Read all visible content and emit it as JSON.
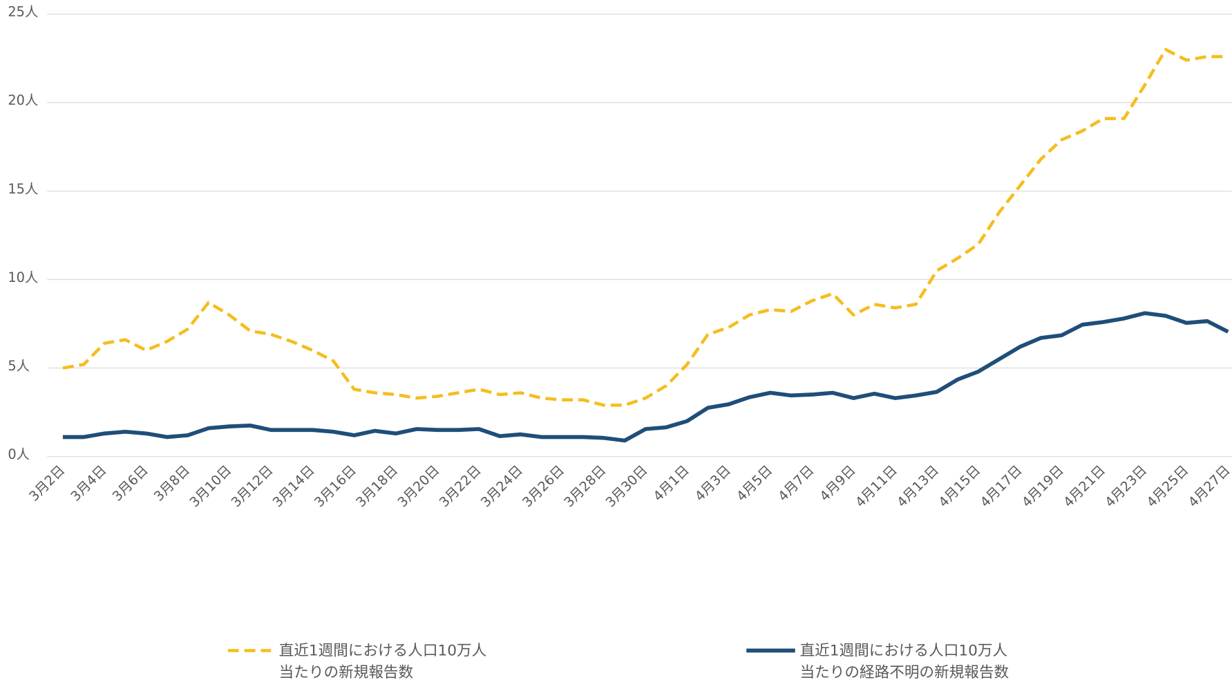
{
  "chart_data": {
    "type": "line",
    "categories": [
      "3月2日",
      null,
      "3月4日",
      null,
      "3月6日",
      null,
      "3月8日",
      null,
      "3月10日",
      null,
      "3月12日",
      null,
      "3月14日",
      null,
      "3月16日",
      null,
      "3月18日",
      null,
      "3月20日",
      null,
      "3月22日",
      null,
      "3月24日",
      null,
      "3月26日",
      null,
      "3月28日",
      null,
      "3月30日",
      null,
      "4月1日",
      null,
      "4月3日",
      null,
      "4月5日",
      null,
      "4月7日",
      null,
      "4月9日",
      null,
      "4月11日",
      null,
      "4月13日",
      null,
      "4月15日",
      null,
      "4月17日",
      null,
      "4月19日",
      null,
      "4月21日",
      null,
      "4月23日",
      null,
      "4月25日",
      null,
      "4月27日"
    ],
    "series": [
      {
        "name": "直近1週間における人口10万人\n当たりの新規報告数",
        "color": "#f5bd1f",
        "dash": true,
        "values": [
          5.0,
          5.2,
          6.4,
          6.6,
          6.0,
          6.5,
          7.2,
          8.7,
          8.0,
          7.1,
          6.9,
          6.5,
          6.0,
          5.4,
          3.8,
          3.6,
          3.5,
          3.3,
          3.4,
          3.6,
          3.8,
          3.5,
          3.6,
          3.3,
          3.2,
          3.2,
          2.9,
          2.9,
          3.3,
          4.0,
          5.2,
          6.9,
          7.3,
          8.0,
          8.3,
          8.2,
          8.8,
          9.2,
          8.0,
          8.6,
          8.4,
          8.6,
          10.5,
          11.2,
          12.0,
          13.8,
          15.3,
          16.8,
          17.9,
          18.4,
          19.1,
          19.1,
          21.0,
          23.0,
          22.4,
          22.6,
          22.6
        ]
      },
      {
        "name": "直近1週間における人口10万人\n当たりの経路不明の新規報告数",
        "color": "#1f4e79",
        "dash": false,
        "values": [
          1.1,
          1.1,
          1.3,
          1.4,
          1.3,
          1.1,
          1.2,
          1.6,
          1.7,
          1.75,
          1.5,
          1.5,
          1.5,
          1.4,
          1.2,
          1.45,
          1.3,
          1.55,
          1.5,
          1.5,
          1.55,
          1.15,
          1.25,
          1.1,
          1.1,
          1.1,
          1.05,
          0.9,
          1.55,
          1.65,
          2.0,
          2.75,
          2.95,
          3.35,
          3.6,
          3.45,
          3.5,
          3.6,
          3.3,
          3.55,
          3.3,
          3.45,
          3.65,
          4.35,
          4.8,
          5.5,
          6.2,
          6.7,
          6.85,
          7.45,
          7.6,
          7.8,
          8.1,
          7.95,
          7.55,
          7.65,
          7.05
        ]
      }
    ],
    "ylim": [
      0,
      25
    ],
    "yticks": [
      {
        "value": 0,
        "label": "0人"
      },
      {
        "value": 5,
        "label": "5人"
      },
      {
        "value": 10,
        "label": "10人"
      },
      {
        "value": 15,
        "label": "15人"
      },
      {
        "value": 20,
        "label": "20人"
      },
      {
        "value": 25,
        "label": "25人"
      }
    ],
    "grid": true
  }
}
